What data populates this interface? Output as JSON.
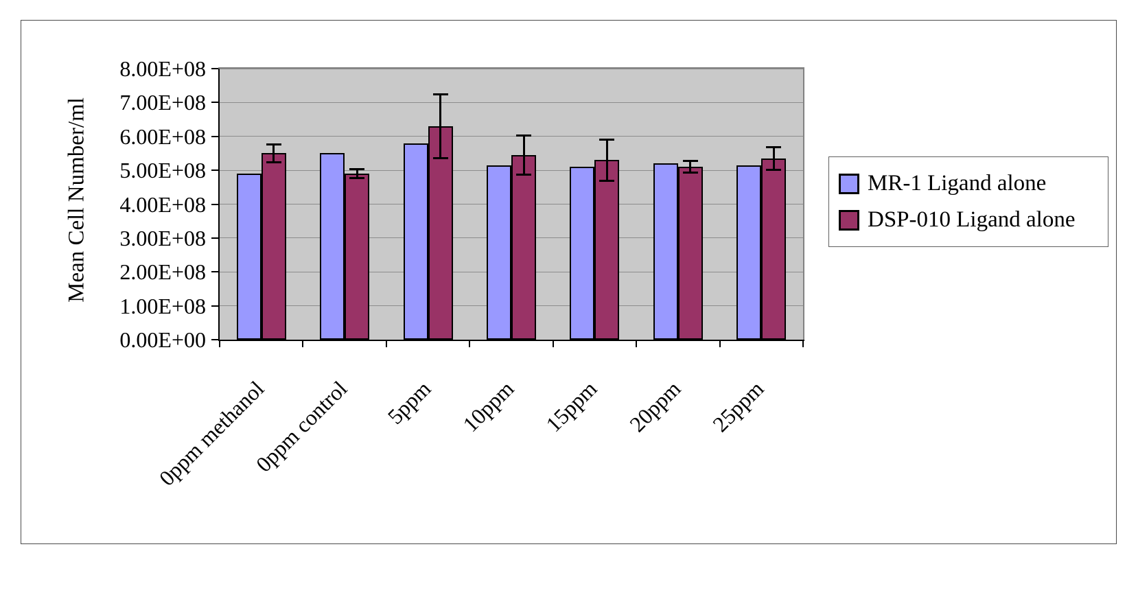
{
  "figure": {
    "outer_background": "#FFFFFF",
    "frame_border_color": "#4A4A4A",
    "plot_background": "#C9C9C9",
    "gridline_color": "#8C8C8C"
  },
  "chart_data": {
    "type": "bar",
    "title": "",
    "xlabel": "",
    "ylabel": "Mean Cell Number/ml",
    "grid": true,
    "legend_position": "right",
    "categories": [
      "0ppm methanol",
      "0ppm control",
      "5ppm",
      "10ppm",
      "15ppm",
      "20ppm",
      "25ppm"
    ],
    "series": [
      {
        "name": "MR-1 Ligand alone",
        "color": "#9999FF",
        "values": [
          490000000,
          550000000,
          580000000,
          515000000,
          510000000,
          520000000,
          515000000
        ]
      },
      {
        "name": "DSP-010 Ligand alone",
        "color": "#993366",
        "values": [
          550000000,
          490000000,
          630000000,
          545000000,
          530000000,
          510000000,
          535000000
        ],
        "error_bars": [
          28000000,
          15000000,
          95000000,
          58000000,
          62000000,
          18000000,
          35000000
        ]
      }
    ],
    "y_axis": {
      "min": 0,
      "max": 800000000,
      "tick_interval": 100000000,
      "tick_labels": [
        "0.00E+00",
        "1.00E+08",
        "2.00E+08",
        "3.00E+08",
        "4.00E+08",
        "5.00E+08",
        "6.00E+08",
        "7.00E+08",
        "8.00E+08"
      ]
    }
  }
}
